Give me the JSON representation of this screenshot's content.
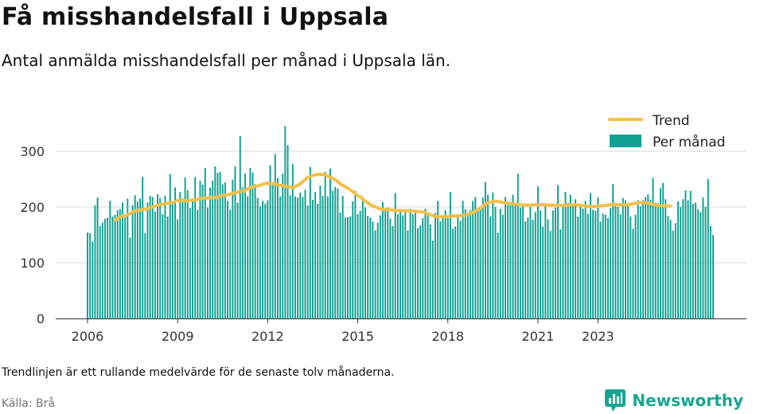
{
  "title": "Få misshandelsfall i Uppsala",
  "subtitle": "Antal anmälda misshandelsfall per månad i Uppsala län.",
  "footnote": "Trendlinjen är ett rullande medelvärde för de senaste tolv månaderna.",
  "source": "Källa: Brå",
  "brand": {
    "name": "Newsworthy",
    "color": "#18A692",
    "icon": "bar-chart-logo-icon"
  },
  "chart_data": {
    "type": "bar",
    "start": "2006-01",
    "x_ticks": [
      "2006",
      "2009",
      "2012",
      "2015",
      "2018",
      "2021",
      "2023"
    ],
    "y_ticks": [
      0,
      100,
      200,
      300
    ],
    "ylim": [
      0,
      350
    ],
    "grid": true,
    "legend_position": "top-right",
    "series": [
      {
        "name": "Trend",
        "kind": "line",
        "color": "#F5C04A",
        "values": [
          null,
          null,
          null,
          null,
          null,
          null,
          null,
          null,
          null,
          null,
          null,
          176.6,
          178.4,
          181.9,
          184.1,
          183.9,
          186.3,
          188.1,
          190.8,
          193.1,
          193.5,
          194.4,
          195.2,
          196.1,
          197.2,
          199.1,
          200.5,
          201.4,
          202.9,
          204.3,
          205.1,
          206.2,
          207.0,
          207.4,
          208.0,
          209.7,
          211.6,
          211.6,
          211.4,
          211.5,
          211.3,
          211.5,
          212.4,
          212.8,
          213.9,
          214.8,
          215.7,
          216.0,
          216.1,
          216.7,
          216.7,
          216.8,
          217.7,
          219.3,
          220.6,
          221.5,
          221.8,
          223.0,
          224.5,
          226.0,
          226.4,
          227.8,
          229.0,
          229.5,
          232.3,
          234.5,
          236.0,
          237.1,
          237.8,
          239.1,
          240.9,
          242.3,
          242.7,
          242.1,
          242.0,
          241.6,
          239.8,
          238.5,
          238.6,
          237.3,
          236.2,
          235.6,
          235.3,
          236.7,
          238.8,
          241.7,
          245.6,
          249.5,
          253.0,
          254.6,
          256.5,
          257.8,
          258.4,
          258.6,
          258.6,
          257.9,
          255.3,
          253.4,
          251.2,
          248.6,
          245.6,
          241.6,
          238.7,
          236.6,
          233.5,
          230.9,
          227.6,
          224.3,
          220.2,
          218.2,
          214.1,
          210.2,
          207.8,
          204.5,
          201.9,
          200.4,
          198.3,
          196.2,
          195.9,
          195.5,
          195.1,
          195.0,
          194.5,
          194.1,
          193.9,
          193.5,
          193.2,
          193.2,
          193.0,
          192.8,
          192.5,
          192.3,
          191.8,
          191.7,
          191.1,
          189.7,
          187.7,
          185.8,
          184.3,
          183.3,
          182.6,
          182.4,
          182.4,
          182.5,
          182.5,
          183.1,
          183.9,
          184.1,
          184.2,
          184.5,
          185.1,
          185.7,
          186.5,
          188.3,
          190.0,
          192.4,
          195.5,
          198.0,
          201.6,
          205.0,
          207.2,
          208.7,
          209.9,
          210.4,
          209.8,
          209.1,
          208.3,
          207.1,
          206.8,
          206.3,
          205.5,
          205.1,
          204.6,
          204.2,
          203.9,
          203.6,
          203.4,
          203.5,
          203.9,
          204.3,
          204.3,
          204.4,
          204.2,
          203.9,
          203.6,
          203.3,
          203.2,
          203.0,
          202.9,
          202.7,
          202.6,
          202.8,
          203.2,
          203.6,
          203.9,
          203.9,
          203.5,
          203.0,
          202.4,
          201.8,
          201.2,
          200.8,
          200.7,
          200.9,
          201.4,
          201.9,
          202.4,
          203.0,
          203.6,
          204.1,
          204.4,
          204.5,
          204.3,
          204.1,
          204.0,
          204.0,
          204.3,
          205.0,
          205.9,
          206.8,
          207.4,
          207.8,
          207.8,
          207.6,
          207.0,
          206.1,
          205.0,
          203.7,
          202.7,
          202.3,
          202.3,
          202.4,
          202.2,
          201.5
        ]
      },
      {
        "name": "Per månad",
        "kind": "bar",
        "color": "#0FA192",
        "values": [
          154.0,
          153.0,
          138.0,
          203.0,
          217.0,
          166.0,
          172.0,
          179.0,
          181.0,
          211.0,
          183.0,
          186.0,
          194.0,
          196.0,
          208.0,
          181.0,
          215.0,
          145.0,
          203.0,
          221.0,
          210.0,
          215.0,
          254.0,
          153.0,
          208.0,
          220.0,
          218.0,
          192.0,
          223.0,
          216.0,
          187.0,
          220.0,
          183.0,
          259.0,
          205.0,
          235.0,
          178.0,
          227.0,
          215.0,
          253.0,
          230.0,
          198.0,
          211.0,
          254.0,
          195.0,
          247.0,
          240.0,
          270.0,
          199.0,
          235.0,
          247.0,
          273.0,
          261.0,
          263.0,
          241.0,
          244.0,
          211.0,
          195.0,
          249.0,
          273.0,
          208.0,
          327.0,
          235.0,
          260.0,
          219.0,
          270.0,
          262.0,
          241.0,
          216.0,
          201.0,
          211.0,
          206.0,
          212.0,
          275.0,
          241.0,
          295.0,
          252.0,
          219.0,
          260.0,
          345.0,
          311.0,
          221.0,
          277.0,
          219.0,
          217.0,
          226.0,
          218.0,
          231.0,
          203.0,
          272.0,
          213.0,
          227.0,
          206.0,
          238.0,
          220.0,
          263.0,
          219.0,
          269.0,
          229.0,
          236.0,
          233.0,
          190.0,
          220.0,
          181.0,
          182.0,
          183.0,
          210.0,
          229.0,
          187.0,
          193.0,
          212.0,
          199.0,
          184.0,
          181.0,
          174.0,
          158.0,
          172.0,
          185.0,
          209.0,
          194.0,
          199.0,
          179.0,
          166.0,
          225.0,
          187.0,
          192.0,
          185.0,
          193.0,
          158.0,
          197.0,
          187.0,
          194.0,
          162.0,
          167.0,
          180.0,
          197.0,
          191.0,
          169.0,
          140.0,
          189.0,
          211.0,
          174.0,
          181.0,
          194.0,
          183.0,
          227.0,
          161.0,
          165.0,
          186.0,
          175.0,
          211.0,
          196.0,
          190.0,
          194.0,
          211.0,
          218.0,
          195.0,
          198.0,
          217.0,
          245.0,
          222.0,
          183.0,
          226.0,
          200.0,
          154.0,
          197.0,
          186.0,
          218.0,
          210.0,
          205.0,
          222.0,
          205.0,
          260.0,
          199.0,
          204.0,
          174.0,
          181.0,
          200.0,
          177.0,
          191.0,
          237.0,
          194.0,
          165.0,
          201.0,
          178.0,
          157.0,
          194.0,
          199.0,
          239.0,
          160.0,
          202.0,
          227.0,
          207.0,
          222.0,
          205.0,
          214.0,
          183.0,
          200.0,
          197.0,
          211.0,
          188.0,
          225.0,
          195.0,
          193.0,
          217.0,
          174.0,
          188.0,
          186.0,
          180.0,
          198.0,
          241.0,
          207.0,
          200.0,
          187.0,
          216.0,
          212.0,
          204.0,
          183.0,
          161.0,
          186.0,
          212.0,
          201.0,
          212.0,
          218.0,
          223.0,
          213.0,
          252.0,
          208.0,
          207.0,
          234.0,
          243.0,
          214.0,
          184.0,
          177.0,
          158.0,
          171.0,
          210.0,
          200.0,
          214.0,
          230.0,
          212.0,
          229.0,
          206.0,
          208.0,
          196.0,
          191.0,
          217.0,
          200.0,
          250.0,
          166.0,
          150.0
        ]
      }
    ]
  }
}
